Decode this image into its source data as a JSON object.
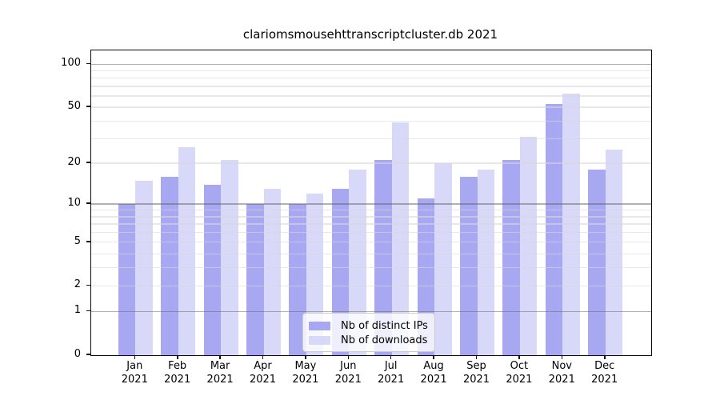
{
  "chart_data": {
    "type": "bar",
    "title": "clariomsmousehttranscriptcluster.db 2021",
    "categories": [
      "Jan",
      "Feb",
      "Mar",
      "Apr",
      "May",
      "Jun",
      "Jul",
      "Aug",
      "Sep",
      "Oct",
      "Nov",
      "Dec"
    ],
    "x_year": "2021",
    "series": [
      {
        "name": "Nb of distinct IPs",
        "color": "#a8a8f2",
        "values": [
          10,
          16,
          14,
          10,
          10,
          13,
          21,
          11,
          16,
          21,
          53,
          18
        ]
      },
      {
        "name": "Nb of downloads",
        "color": "#d8d8f8",
        "values": [
          15,
          26,
          21,
          13,
          12,
          18,
          39,
          20,
          18,
          31,
          62,
          25
        ]
      }
    ],
    "y_scale": "log10(1+v)",
    "ylim": [
      0,
      125
    ],
    "y_tick_values": [
      0,
      1,
      2,
      5,
      10,
      20,
      50,
      100
    ],
    "major_grid_values": [
      1,
      10,
      100
    ],
    "minor_grid_values": [
      2,
      3,
      4,
      5,
      6,
      7,
      8,
      9,
      20,
      30,
      40,
      50,
      60,
      70,
      80,
      90
    ],
    "grid": true,
    "legend_position": "lower center"
  },
  "colors": {
    "ips_bar": "#a8a8f2",
    "downloads_bar": "#d8d8f8",
    "minor_grid_on_white": "#e7e7e7",
    "major_grid_on_white": "#b3b3b3",
    "axis": "#000000",
    "background": "#ffffff"
  }
}
